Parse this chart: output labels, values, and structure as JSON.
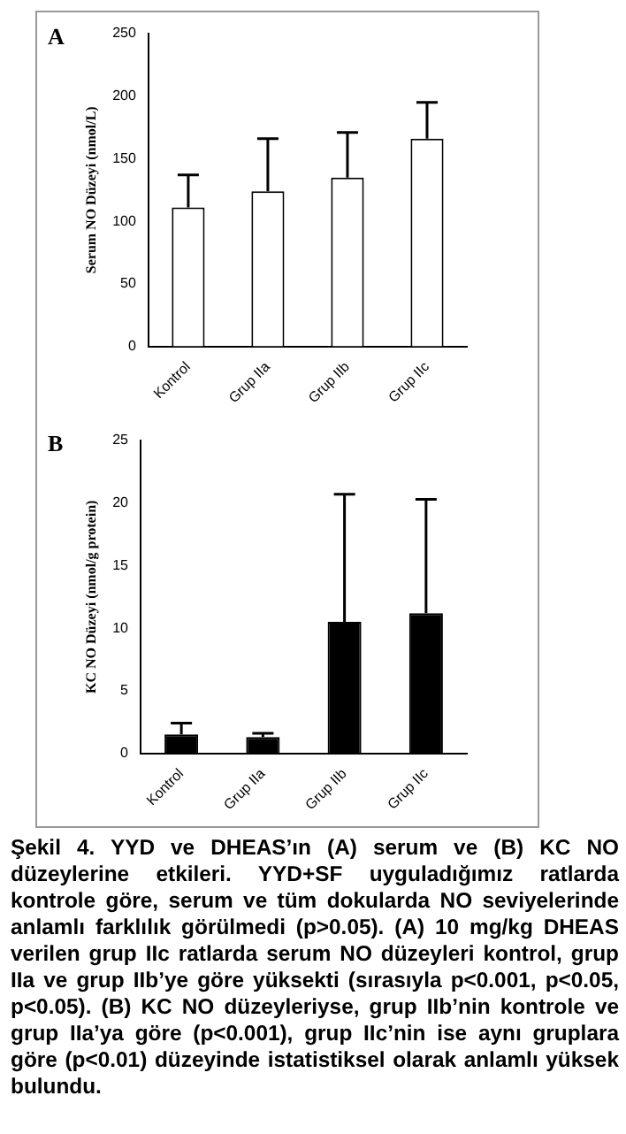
{
  "chart_data": [
    {
      "type": "bar",
      "title": "A",
      "ylabel": "Serum NO Düzeyi (nmol/L)",
      "categories": [
        "Kontrol",
        "Grup IIa",
        "Grup IIb",
        "Grup IIc"
      ],
      "values": [
        111,
        124,
        135,
        166
      ],
      "color": "#ffffff",
      "errors": [
        [
          111,
          137
        ],
        [
          124,
          166
        ],
        [
          135,
          171
        ],
        [
          166,
          195
        ]
      ],
      "ylim": [
        0,
        250
      ],
      "yticks": [
        0,
        50,
        100,
        150,
        200,
        250
      ],
      "grid": false,
      "legend": false
    },
    {
      "type": "bar",
      "title": "B",
      "ylabel": "KC NO Düzeyi (nmol/g protein)",
      "categories": [
        "Kontrol",
        "Grup IIa",
        "Grup IIb",
        "Grup IIc"
      ],
      "values": [
        1.5,
        1.3,
        10.5,
        11.2
      ],
      "color": "#000000",
      "errors": [
        [
          1.5,
          2.4
        ],
        [
          1.3,
          1.6
        ],
        [
          10.5,
          20.7
        ],
        [
          11.2,
          20.3
        ]
      ],
      "ylim": [
        0,
        25
      ],
      "yticks": [
        0,
        5,
        10,
        15,
        20,
        25
      ],
      "grid": false,
      "legend": false,
      "annotations": [
        "Şekil 4. YYD ve DHEAS’ın (A) serum ve (B) KC NO düzeylerine etkileri. YYD+SF uyguladığımız ratlarda kontrole göre, serum ve tüm dokularda NO seviyelerinde anlamlı farklılık görülmedi (p>0.05). (A) 10 mg/kg DHEAS verilen grup IIc ratlarda serum NO düzeyleri kontrol, grup IIa ve grup IIb’ye göre yüksekti (sırasıyla p<0.001, p<0.05, p<0.05). (B) KC NO düzeyleriyse, grup IIb’nin kontrole ve grup IIa’ya göre (p<0.001), grup IIc’nin ise aynı gruplara göre (p<0.01) düzeyinde istatistiksel olarak anlamlı yüksek bulundu."
      ]
    }
  ]
}
